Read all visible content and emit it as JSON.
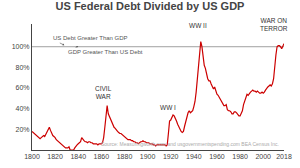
{
  "chart_data": {
    "type": "line",
    "title": "US Federal Debt Divided by US GDP",
    "color": "#cc0000",
    "grid": false,
    "xlim": [
      1800,
      2018
    ],
    "ylim": [
      0,
      122
    ],
    "xticks": [
      1800,
      1820,
      1840,
      1860,
      1880,
      1900,
      1920,
      1940,
      1960,
      1980,
      2000,
      2018
    ],
    "yticks": [
      {
        "value": 20,
        "label": "20%"
      },
      {
        "value": 40,
        "label": "40%"
      },
      {
        "value": 60,
        "label": "60%"
      },
      {
        "value": 80,
        "label": "80%"
      },
      {
        "value": 100,
        "label": "100%"
      }
    ],
    "hline": {
      "y": 100,
      "color": "#888888"
    },
    "annotations": [
      {
        "text": "CIVIL\nWAR",
        "x": 1862,
        "y": 46
      },
      {
        "text": "WW I",
        "x": 1918,
        "y": 36
      },
      {
        "text": "WW II",
        "x": 1944,
        "y": 115
      },
      {
        "text": "WAR ON\nTERROR",
        "x": 2009,
        "y": 112
      }
    ],
    "arrows": [
      {
        "text": "US Debt Greater Than GDP",
        "x": 1816,
        "y": 108,
        "arrow_x": 1828,
        "arrow_y": 101.5
      },
      {
        "text": "GDP Greater Than US Debt",
        "x": 1829,
        "y": 95,
        "arrow_x": 1840,
        "arrow_y": 100.5
      }
    ],
    "source": "Source: Measuringworth.com and usgovernmentspending.com BEA Census Inc.",
    "x": [
      1800,
      1801,
      1802,
      1803,
      1804,
      1805,
      1806,
      1807,
      1808,
      1809,
      1810,
      1811,
      1812,
      1813,
      1814,
      1815,
      1816,
      1817,
      1818,
      1819,
      1820,
      1821,
      1822,
      1823,
      1824,
      1825,
      1826,
      1827,
      1828,
      1829,
      1830,
      1831,
      1832,
      1833,
      1834,
      1835,
      1836,
      1837,
      1838,
      1839,
      1840,
      1841,
      1842,
      1843,
      1844,
      1845,
      1846,
      1847,
      1848,
      1849,
      1850,
      1851,
      1852,
      1853,
      1854,
      1855,
      1856,
      1857,
      1858,
      1859,
      1860,
      1861,
      1862,
      1863,
      1864,
      1865,
      1866,
      1867,
      1868,
      1869,
      1870,
      1871,
      1872,
      1873,
      1874,
      1875,
      1876,
      1877,
      1878,
      1879,
      1880,
      1881,
      1882,
      1883,
      1884,
      1885,
      1886,
      1887,
      1888,
      1889,
      1890,
      1891,
      1892,
      1893,
      1894,
      1895,
      1896,
      1897,
      1898,
      1899,
      1900,
      1901,
      1902,
      1903,
      1904,
      1905,
      1906,
      1907,
      1908,
      1909,
      1910,
      1911,
      1912,
      1913,
      1914,
      1915,
      1916,
      1917,
      1918,
      1919,
      1920,
      1921,
      1922,
      1923,
      1924,
      1925,
      1926,
      1927,
      1928,
      1929,
      1930,
      1931,
      1932,
      1933,
      1934,
      1935,
      1936,
      1937,
      1938,
      1939,
      1940,
      1941,
      1942,
      1943,
      1944,
      1945,
      1946,
      1947,
      1948,
      1949,
      1950,
      1951,
      1952,
      1953,
      1954,
      1955,
      1956,
      1957,
      1958,
      1959,
      1960,
      1961,
      1962,
      1963,
      1964,
      1965,
      1966,
      1967,
      1968,
      1969,
      1970,
      1971,
      1972,
      1973,
      1974,
      1975,
      1976,
      1977,
      1978,
      1979,
      1980,
      1981,
      1982,
      1983,
      1984,
      1985,
      1986,
      1987,
      1988,
      1989,
      1990,
      1991,
      1992,
      1993,
      1994,
      1995,
      1996,
      1997,
      1998,
      1999,
      2000,
      2001,
      2002,
      2003,
      2004,
      2005,
      2006,
      2007,
      2008,
      2009,
      2010,
      2011,
      2012,
      2013,
      2014,
      2015,
      2016,
      2017,
      2018
    ],
    "values": [
      18,
      17,
      16,
      15,
      14,
      13,
      12,
      11,
      12,
      13,
      14,
      13,
      15,
      18,
      20,
      22,
      19,
      16,
      14,
      13,
      12,
      10,
      9,
      8,
      7,
      6,
      5,
      4,
      3,
      2,
      2,
      2,
      3,
      0,
      0,
      0,
      0,
      2,
      4,
      5,
      6,
      7,
      8,
      12,
      10,
      9,
      8,
      8,
      7,
      8,
      8,
      7,
      7,
      6,
      6,
      6,
      6,
      5,
      6,
      6,
      6,
      7,
      12,
      22,
      35,
      43,
      35,
      32,
      30,
      28,
      25,
      22,
      21,
      19,
      18,
      17,
      16,
      16,
      15,
      14,
      13,
      12,
      11,
      10,
      10,
      10,
      9,
      9,
      8,
      8,
      7,
      7,
      6,
      7,
      8,
      8,
      9,
      8,
      8,
      7,
      7,
      7,
      6,
      6,
      6,
      5,
      5,
      4,
      5,
      5,
      5,
      5,
      5,
      5,
      5,
      5,
      4,
      5,
      16,
      28,
      29,
      32,
      34,
      33,
      31,
      28,
      25,
      22,
      21,
      18,
      17,
      18,
      23,
      28,
      32,
      36,
      38,
      36,
      37,
      38,
      42,
      47,
      56,
      70,
      83,
      95,
      105,
      100,
      89,
      82,
      79,
      72,
      69,
      67,
      67,
      64,
      61,
      59,
      61,
      57,
      54,
      53,
      51,
      50,
      47,
      45,
      43,
      43,
      44,
      39,
      38,
      38,
      37,
      35,
      35,
      37,
      37,
      36,
      34,
      33,
      33,
      35,
      38,
      44,
      48,
      52,
      54,
      53,
      55,
      56,
      57,
      58,
      57,
      57,
      56,
      57,
      56,
      55,
      55,
      56,
      55,
      56,
      58,
      60,
      61,
      62,
      63,
      62,
      64,
      69,
      83,
      92,
      100,
      101,
      101,
      100,
      98,
      100,
      103
    ]
  }
}
